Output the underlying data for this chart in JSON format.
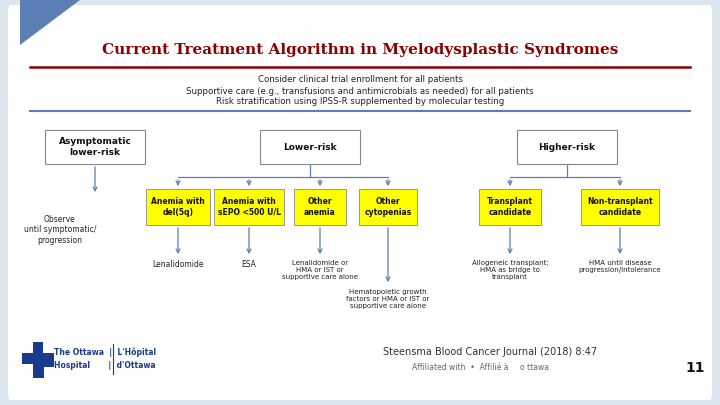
{
  "bg_color": "#dce6f0",
  "slide_bg": "#ffffff",
  "title": "Current Treatment Algorithm in Myelodysplastic Syndromes",
  "title_color": "#8b0000",
  "title_fontsize": 11,
  "red_line_color": "#8b0000",
  "blue_line_color": "#5b7fb5",
  "header_lines": [
    "Consider clinical trial enrollment for all patients",
    "Supportive care (e.g., transfusions and antimicrobials as needed) for all patients",
    "Risk stratification using IPSS-R supplemented by molecular testing"
  ],
  "footer_citation": "Steensma Blood Cancer Journal (2018) 8:47",
  "footer_affil": "Affiliated with  •  Affilié à",
  "footer_number": "11",
  "ottawa_blue": "#1a3a8f",
  "arrow_color": "#5b7fb5",
  "box_edge": "#888888",
  "yellow": "#ffff00"
}
